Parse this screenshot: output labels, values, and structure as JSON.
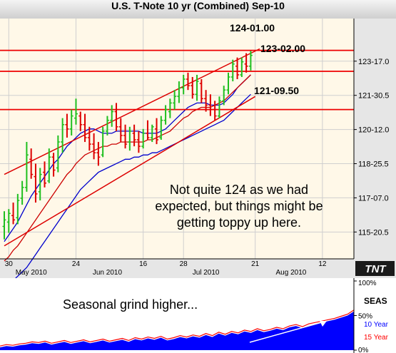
{
  "title": "U.S. T-Note 10 yr (Combined) Sep-10",
  "chart_data": [
    {
      "type": "bar",
      "style": "ohlc",
      "title": "U.S. T-Note 10 yr (Combined) Sep-10",
      "y_axis_side": "right",
      "y_ticks": [
        {
          "label": "123-17.0",
          "value": 123.531
        },
        {
          "label": "121-30.5",
          "value": 121.953
        },
        {
          "label": "120-12.0",
          "value": 120.375
        },
        {
          "label": "118-25.5",
          "value": 118.797
        },
        {
          "label": "117-07.0",
          "value": 117.219
        },
        {
          "label": "115-20.5",
          "value": 115.641
        }
      ],
      "ylim": [
        114.4,
        125.5
      ],
      "x_tick_labels": [
        "30",
        "May 2010",
        "24",
        "Jun 2010",
        "16",
        "28",
        "Jul 2010",
        "21",
        "Aug 2010",
        "12"
      ],
      "x_day_ticks": [
        {
          "label": "30",
          "index": 1
        },
        {
          "label": "24",
          "index": 16
        },
        {
          "label": "16",
          "index": 31
        },
        {
          "label": "28",
          "index": 40
        },
        {
          "label": "21",
          "index": 56
        },
        {
          "label": "12",
          "index": 71
        }
      ],
      "x_month_labels": [
        {
          "label": "May 2010",
          "index": 6
        },
        {
          "label": "Jun 2010",
          "index": 23
        },
        {
          "label": "Jul 2010",
          "index": 45
        },
        {
          "label": "Aug 2010",
          "index": 64
        }
      ],
      "bars": [
        {
          "o": 115.9,
          "h": 116.6,
          "l": 115.3,
          "c": 116.2
        },
        {
          "o": 116.1,
          "h": 116.7,
          "l": 115.6,
          "c": 116.5
        },
        {
          "o": 116.4,
          "h": 117.0,
          "l": 116.0,
          "c": 116.2
        },
        {
          "o": 116.3,
          "h": 117.4,
          "l": 116.0,
          "c": 117.1
        },
        {
          "o": 117.2,
          "h": 118.0,
          "l": 116.9,
          "c": 117.7
        },
        {
          "o": 117.7,
          "h": 119.8,
          "l": 117.5,
          "c": 119.2
        },
        {
          "o": 119.0,
          "h": 119.5,
          "l": 118.1,
          "c": 118.3
        },
        {
          "o": 118.2,
          "h": 118.8,
          "l": 117.0,
          "c": 117.4
        },
        {
          "o": 117.5,
          "h": 118.6,
          "l": 117.1,
          "c": 118.3
        },
        {
          "o": 118.4,
          "h": 118.9,
          "l": 117.7,
          "c": 117.9
        },
        {
          "o": 118.0,
          "h": 119.5,
          "l": 117.9,
          "c": 119.1
        },
        {
          "o": 119.1,
          "h": 119.3,
          "l": 118.2,
          "c": 118.5
        },
        {
          "o": 118.6,
          "h": 120.1,
          "l": 118.4,
          "c": 119.8
        },
        {
          "o": 119.8,
          "h": 120.9,
          "l": 119.3,
          "c": 120.6
        },
        {
          "o": 120.6,
          "h": 121.1,
          "l": 120.0,
          "c": 120.4
        },
        {
          "o": 120.4,
          "h": 121.3,
          "l": 120.1,
          "c": 121.0
        },
        {
          "o": 120.9,
          "h": 121.8,
          "l": 120.6,
          "c": 121.1
        },
        {
          "o": 121.0,
          "h": 121.2,
          "l": 120.3,
          "c": 120.6
        },
        {
          "o": 120.6,
          "h": 121.1,
          "l": 119.8,
          "c": 120.0
        },
        {
          "o": 120.0,
          "h": 120.5,
          "l": 119.4,
          "c": 119.7
        },
        {
          "o": 119.7,
          "h": 120.2,
          "l": 119.0,
          "c": 119.3
        },
        {
          "o": 119.3,
          "h": 119.8,
          "l": 118.7,
          "c": 119.1
        },
        {
          "o": 119.2,
          "h": 120.5,
          "l": 119.1,
          "c": 120.3
        },
        {
          "o": 120.3,
          "h": 121.0,
          "l": 120.1,
          "c": 120.8
        },
        {
          "o": 120.8,
          "h": 121.5,
          "l": 120.5,
          "c": 121.2
        },
        {
          "o": 121.2,
          "h": 121.6,
          "l": 120.3,
          "c": 120.5
        },
        {
          "o": 120.5,
          "h": 120.9,
          "l": 119.8,
          "c": 120.1
        },
        {
          "o": 120.1,
          "h": 120.6,
          "l": 119.5,
          "c": 119.7
        },
        {
          "o": 119.8,
          "h": 120.5,
          "l": 119.4,
          "c": 120.3
        },
        {
          "o": 120.2,
          "h": 120.6,
          "l": 119.6,
          "c": 119.9
        },
        {
          "o": 119.9,
          "h": 120.3,
          "l": 119.3,
          "c": 119.6
        },
        {
          "o": 119.6,
          "h": 120.4,
          "l": 119.5,
          "c": 120.2
        },
        {
          "o": 120.2,
          "h": 120.8,
          "l": 119.9,
          "c": 120.0
        },
        {
          "o": 120.0,
          "h": 120.6,
          "l": 119.8,
          "c": 120.5
        },
        {
          "o": 120.4,
          "h": 120.9,
          "l": 119.7,
          "c": 119.9
        },
        {
          "o": 120.0,
          "h": 121.0,
          "l": 119.9,
          "c": 120.8
        },
        {
          "o": 120.8,
          "h": 121.5,
          "l": 120.6,
          "c": 121.3
        },
        {
          "o": 121.2,
          "h": 121.8,
          "l": 120.9,
          "c": 121.6
        },
        {
          "o": 121.6,
          "h": 122.2,
          "l": 121.3,
          "c": 121.9
        },
        {
          "o": 121.9,
          "h": 122.6,
          "l": 121.6,
          "c": 122.3
        },
        {
          "o": 122.3,
          "h": 122.9,
          "l": 122.0,
          "c": 122.7
        },
        {
          "o": 122.7,
          "h": 123.0,
          "l": 122.2,
          "c": 122.4
        },
        {
          "o": 122.4,
          "h": 122.8,
          "l": 121.8,
          "c": 122.0
        },
        {
          "o": 122.0,
          "h": 122.9,
          "l": 121.7,
          "c": 122.6
        },
        {
          "o": 122.5,
          "h": 122.7,
          "l": 121.6,
          "c": 121.8
        },
        {
          "o": 121.8,
          "h": 122.2,
          "l": 121.2,
          "c": 121.5
        },
        {
          "o": 121.5,
          "h": 122.0,
          "l": 121.0,
          "c": 121.3
        },
        {
          "o": 121.3,
          "h": 121.7,
          "l": 120.8,
          "c": 121.0
        },
        {
          "o": 121.0,
          "h": 121.9,
          "l": 120.9,
          "c": 121.7
        },
        {
          "o": 121.7,
          "h": 122.4,
          "l": 121.5,
          "c": 122.2
        },
        {
          "o": 122.2,
          "h": 123.0,
          "l": 122.0,
          "c": 122.8
        },
        {
          "o": 122.8,
          "h": 123.6,
          "l": 122.6,
          "c": 123.4
        },
        {
          "o": 123.3,
          "h": 123.7,
          "l": 122.7,
          "c": 122.9
        },
        {
          "o": 122.9,
          "h": 123.7,
          "l": 122.8,
          "c": 123.5
        },
        {
          "o": 123.4,
          "h": 123.9,
          "l": 123.0,
          "c": 123.3
        },
        {
          "o": 123.3,
          "h": 124.0,
          "l": 123.1,
          "c": 123.8
        }
      ],
      "moving_averages": [
        {
          "color": "#0000cc",
          "values": [
            115.2,
            115.5,
            115.8,
            116.1,
            116.5,
            116.9,
            117.3,
            117.6,
            117.9,
            118.2,
            118.5,
            118.8,
            119.0,
            119.3,
            119.6,
            119.8,
            120.0,
            120.2,
            120.3,
            120.4,
            120.4,
            120.3,
            120.2,
            120.2,
            120.2,
            120.3,
            120.3,
            120.3,
            120.3,
            120.3,
            120.3,
            120.2,
            120.2,
            120.2,
            120.2,
            120.3,
            120.4,
            120.6,
            120.8,
            121.0,
            121.2,
            121.4,
            121.5,
            121.6,
            121.6,
            121.6,
            121.5,
            121.5,
            121.5,
            121.6,
            121.8,
            122.0,
            122.3,
            122.5,
            122.7,
            122.9
          ]
        },
        {
          "color": "#cc0000",
          "values": [
            114.3,
            114.5,
            114.8,
            115.0,
            115.3,
            115.6,
            115.9,
            116.2,
            116.5,
            116.8,
            117.1,
            117.4,
            117.7,
            118.0,
            118.3,
            118.5,
            118.8,
            119.0,
            119.2,
            119.3,
            119.4,
            119.5,
            119.6,
            119.6,
            119.7,
            119.7,
            119.8,
            119.8,
            119.8,
            119.8,
            119.8,
            119.8,
            119.9,
            119.9,
            120.0,
            120.1,
            120.2,
            120.3,
            120.5,
            120.7,
            120.9,
            121.0,
            121.2,
            121.3,
            121.4,
            121.4,
            121.4,
            121.5,
            121.6,
            121.7,
            121.9,
            122.1,
            122.3,
            122.5,
            122.7,
            122.9
          ]
        },
        {
          "color": "#0000cc",
          "values": [
            113.0,
            113.2,
            113.4,
            113.6,
            113.8,
            114.0,
            114.3,
            114.6,
            114.9,
            115.2,
            115.5,
            115.8,
            116.1,
            116.4,
            116.7,
            117.0,
            117.3,
            117.6,
            117.8,
            118.0,
            118.2,
            118.4,
            118.5,
            118.6,
            118.7,
            118.8,
            118.9,
            119.0,
            119.0,
            119.1,
            119.1,
            119.2,
            119.2,
            119.3,
            119.3,
            119.4,
            119.5,
            119.6,
            119.7,
            119.8,
            119.9,
            120.0,
            120.1,
            120.2,
            120.3,
            120.4,
            120.5,
            120.6,
            120.7,
            120.8,
            121.0,
            121.2,
            121.4,
            121.6,
            121.8,
            122.0
          ]
        }
      ],
      "channel_lines": [
        {
          "from": {
            "index": 0,
            "value": 118.3
          },
          "to": {
            "index": 57,
            "value": 124.1
          }
        },
        {
          "from": {
            "index": 0,
            "value": 115.0
          },
          "to": {
            "index": 56,
            "value": 121.9
          }
        }
      ],
      "levels": [
        {
          "label": "124-01.00",
          "value": 124.031
        },
        {
          "label": "123-02.00",
          "value": 123.063
        },
        {
          "label": "121-09.50",
          "value": 121.297
        }
      ],
      "annotation": "Not quite 124 as we had\nexpected, but things might be\ngetting toppy up here.",
      "logo": "TNT"
    },
    {
      "type": "area",
      "title": "SEAS",
      "y_ticks": [
        "100%",
        "50%",
        "0%"
      ],
      "ylim": [
        0,
        100
      ],
      "annotation": "Seasonal grind higher...",
      "series": [
        {
          "name": "10 Year",
          "color": "#0000ff",
          "values": [
            4,
            6,
            5,
            7,
            8,
            10,
            9,
            11,
            8,
            10,
            12,
            9,
            11,
            13,
            10,
            12,
            14,
            11,
            13,
            15,
            12,
            16,
            14,
            17,
            15,
            18,
            14,
            16,
            19,
            17,
            20,
            18,
            22,
            19,
            24,
            21,
            25,
            23,
            27,
            25,
            29,
            26,
            28,
            31,
            29,
            33,
            35,
            32,
            36,
            38,
            40,
            42,
            44,
            47,
            50,
            56
          ]
        },
        {
          "name": "15 Year",
          "color": "#ff0000",
          "values": [
            6,
            8,
            7,
            9,
            10,
            12,
            11,
            13,
            10,
            12,
            14,
            11,
            13,
            15,
            12,
            14,
            16,
            13,
            15,
            17,
            14,
            18,
            16,
            19,
            17,
            20,
            16,
            18,
            21,
            19,
            22,
            20,
            24,
            21,
            26,
            23,
            27,
            25,
            29,
            27,
            31,
            28,
            30,
            33,
            31,
            35,
            37,
            34,
            38,
            40,
            42,
            44,
            46,
            49,
            52,
            58
          ]
        }
      ]
    }
  ]
}
